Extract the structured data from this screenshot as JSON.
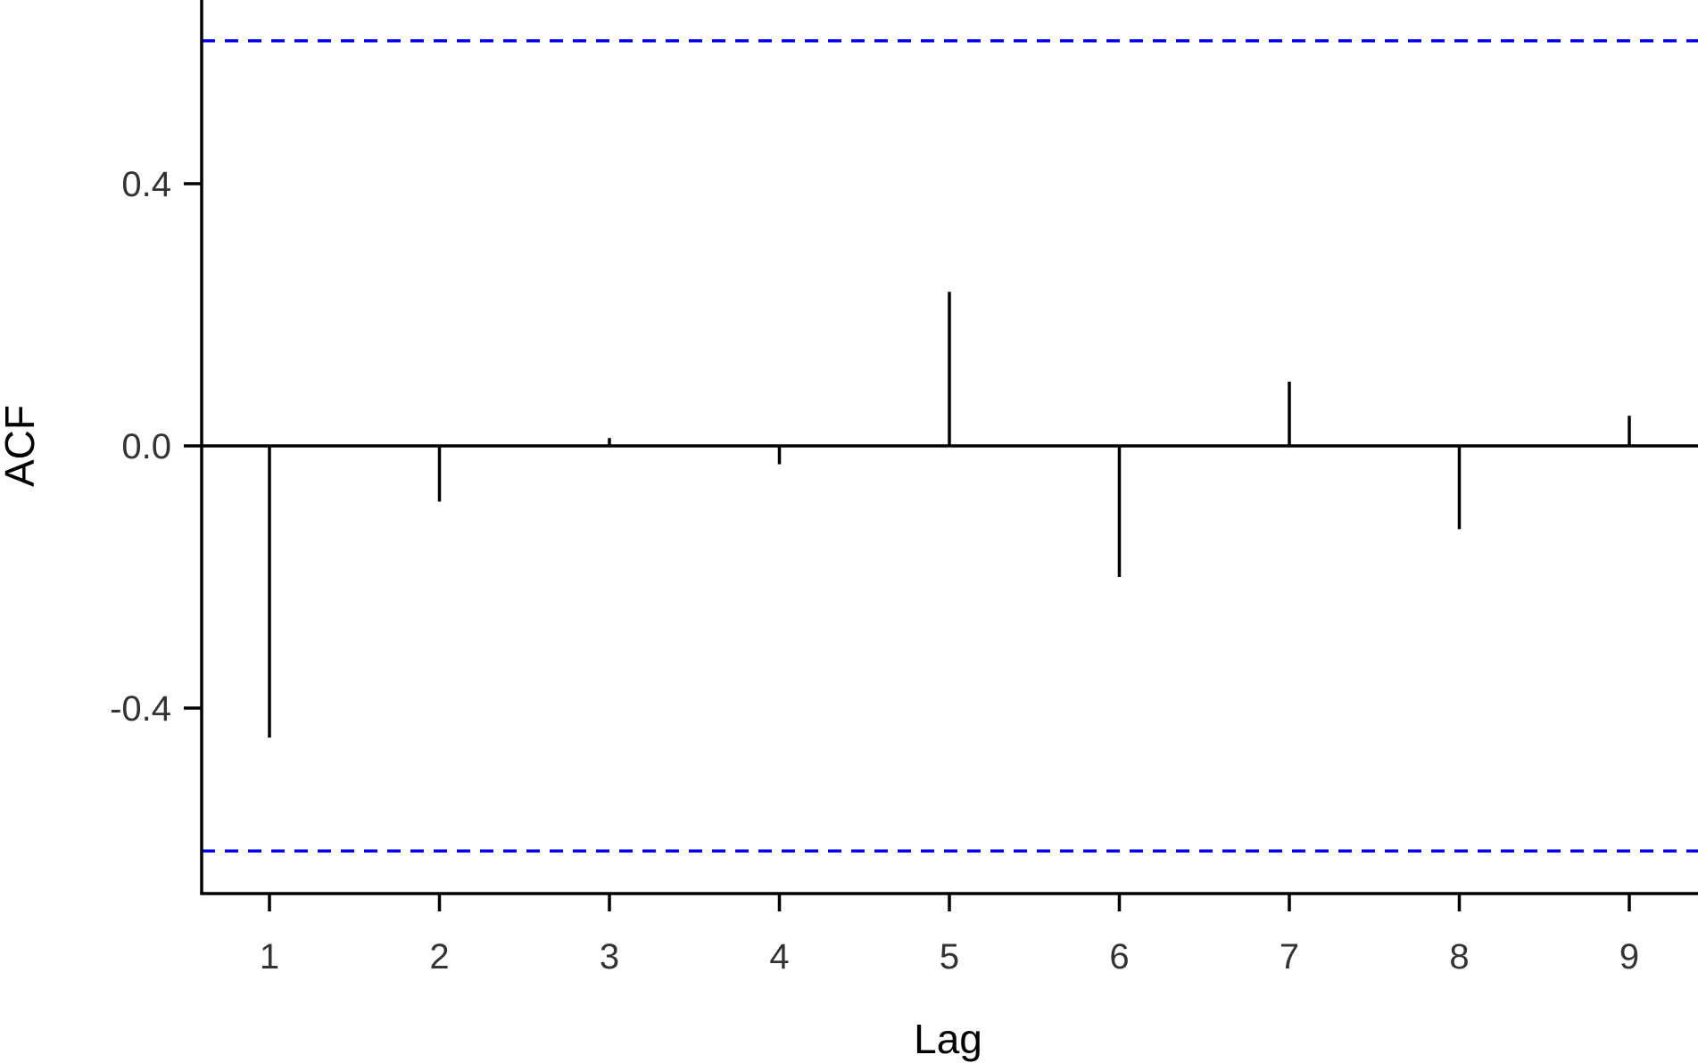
{
  "chart_data": {
    "type": "bar",
    "title": "",
    "xlabel": "Lag",
    "ylabel": "ACF",
    "x": [
      1,
      2,
      3,
      4,
      5,
      6,
      7,
      8,
      9
    ],
    "values": [
      -0.445,
      -0.085,
      0.012,
      -0.028,
      0.235,
      -0.2,
      0.098,
      -0.127,
      0.046
    ],
    "x_ticks": [
      "1",
      "2",
      "3",
      "4",
      "5",
      "6",
      "7",
      "8",
      "9"
    ],
    "y_ticks": [
      -0.4,
      0.0,
      0.4
    ],
    "y_tick_labels": [
      "-0.4",
      "0.0",
      "0.4"
    ],
    "xlim": [
      0.6,
      9.4
    ],
    "ylim": [
      -0.68,
      0.68
    ],
    "confidence_bounds": [
      0.618,
      -0.618
    ],
    "grid": false,
    "colors": {
      "bars": "#000000",
      "bounds": "#0000ee",
      "axis": "#000000"
    }
  }
}
